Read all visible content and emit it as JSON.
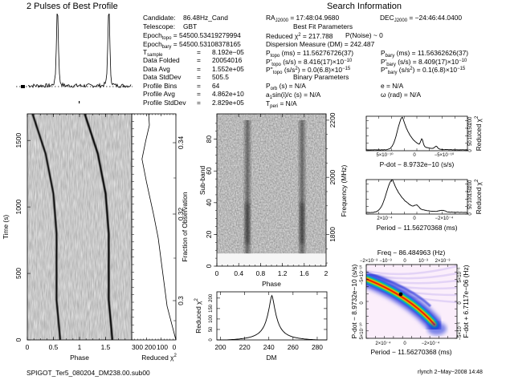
{
  "profile_title": "2 Pulses of Best Profile",
  "info_left": {
    "candidate": {
      "label": "Candidate:",
      "value": "86.48Hz_Cand"
    },
    "telescope": {
      "label": "Telescope:",
      "value": "GBT"
    },
    "epoch_topo": {
      "label": "Epoch",
      "sub": "topo",
      "value": "= 54500.53419279994"
    },
    "epoch_bary": {
      "label": "Epoch",
      "sub": "bary",
      "value": "= 54500.53108378165"
    },
    "t_sample": {
      "label": "T",
      "sub": "sample",
      "value": "8.192e−05"
    },
    "rows": [
      {
        "label": "Data Folded",
        "value": "20054016"
      },
      {
        "label": "Data Avg",
        "value": "1.552e+05"
      },
      {
        "label": "Data StdDev",
        "value": "505.5"
      },
      {
        "label": "Profile Bins",
        "value": "64"
      },
      {
        "label": "Profile Avg",
        "value": "4.862e+10"
      },
      {
        "label": "Profile StdDev",
        "value": "2.829e+05"
      }
    ],
    "eq": "="
  },
  "info_right": {
    "title": "Search Information",
    "ra": {
      "label": "RA",
      "sub": "J2000",
      "value": "= 17:48:04.9680"
    },
    "dec": {
      "label": "DEC",
      "sub": "J2000",
      "value": "= −24:46:44.0400"
    },
    "best_fit_title": "Best Fit Parameters",
    "chi2": "Reduced χ",
    "chi2_sup": "2",
    "chi2_value": "= 217.788",
    "pnoise": "P(Noise) ~ 0",
    "dm": "Dispersion Measure (DM) = 242.487",
    "p_topo": {
      "label": "P",
      "sub": "topo",
      "unit": "(ms) =",
      "value": "11.56276726(37)"
    },
    "pd_topo": {
      "label": "P'",
      "sub": "topo",
      "unit": "(s/s) =",
      "value": "8.416(17)×10",
      "exp": "−10"
    },
    "pdd_topo": {
      "label": "P''",
      "sub": "topo",
      "unit": "(s/s",
      "unit_sup": "2",
      "unit_end": ") =",
      "value": "0.0(6.8)×10",
      "exp": "−15"
    },
    "p_bary": {
      "label": "P",
      "sub": "bary",
      "unit": "(ms) =",
      "value": "11.56362626(37)"
    },
    "pd_bary": {
      "label": "P'",
      "sub": "bary",
      "unit": "(s/s) =",
      "value": "8.409(17)×10",
      "exp": "−10"
    },
    "pdd_bary": {
      "label": "P''",
      "sub": "bary",
      "unit": "(s/s",
      "unit_sup": "2",
      "unit_end": ") =",
      "value": "0.1(6.8)×10",
      "exp": "−15"
    },
    "binary_title": "Binary Parameters",
    "p_orb": {
      "label": "P",
      "sub": "orb",
      "value": "(s) = N/A"
    },
    "a1": {
      "label": "a",
      "sub": "1",
      "value": "sin(i)/c (s) = N/A"
    },
    "t_peri": {
      "label": "T",
      "sub": "peri",
      "value": "= N/A"
    },
    "e": "e = N/A",
    "omega": "ω (rad) = N/A"
  },
  "footer": {
    "filename": "SPIGOT_Ter5_080204_DM238.00.sub00",
    "user_date": "rlynch   2−May−2008 14:48"
  },
  "colors": {
    "ink": "#000000",
    "greyscale_bg": "#f2f2f2",
    "cmap": [
      "#fbeefb",
      "#d8c8f4",
      "#6f6fe8",
      "#1a2fd8",
      "#00a0e0",
      "#26c060",
      "#e8e800",
      "#ff8a00",
      "#e60000"
    ]
  },
  "chart_data": [
    {
      "type": "line",
      "title": "2 Pulses of Best Profile",
      "xlabel": "",
      "ylabel": "",
      "x_range": [
        0,
        2
      ],
      "peaks_phase": [
        0.57,
        1.57
      ],
      "description_values": {
        "baseline": 0.1,
        "peak": 1.0
      }
    },
    {
      "type": "heatmap",
      "name": "time-phase",
      "xlabel": "Phase",
      "ylabel": "Time (s)",
      "x_ticks": [
        "0",
        "0.5",
        "1",
        "1.5"
      ],
      "y_ticks": [
        "0",
        "500",
        "1000",
        "1500"
      ],
      "xlim": [
        0,
        2
      ],
      "ylim": [
        0,
        1700
      ],
      "tracks": [
        {
          "phase_at": [
            [
              0,
              0.63
            ],
            [
              300,
              0.56
            ],
            [
              800,
              0.56
            ],
            [
              1100,
              0.5
            ],
            [
              1400,
              0.35
            ],
            [
              1700,
              0.1
            ]
          ]
        },
        {
          "phase_at": [
            [
              0,
              1.63
            ],
            [
              300,
              1.56
            ],
            [
              800,
              1.56
            ],
            [
              1100,
              1.5
            ],
            [
              1400,
              1.35
            ],
            [
              1700,
              1.1
            ]
          ]
        }
      ]
    },
    {
      "type": "line",
      "name": "time-chi2",
      "xlabel": "Reduced χ",
      "xlabel_sup": "2",
      "ylabel": "Fraction of Observation",
      "x_ticks": [
        "300",
        "200",
        "100",
        "0"
      ],
      "y_ticks": [
        "0.3",
        "0.32",
        "0.34"
      ],
      "xlim": [
        300,
        0
      ],
      "points": [
        [
          0,
          0.0
        ],
        [
          20,
          0.05
        ],
        [
          60,
          0.15
        ],
        [
          90,
          0.3
        ],
        [
          120,
          0.45
        ],
        [
          150,
          0.55
        ],
        [
          200,
          0.7
        ],
        [
          230,
          0.8
        ],
        [
          205,
          0.88
        ],
        [
          180,
          0.95
        ],
        [
          185,
          1.0
        ]
      ]
    },
    {
      "type": "heatmap",
      "name": "subband-phase",
      "xlabel": "Phase",
      "ylabel": "Sub-band",
      "ylabel2": "Frequency (MHz)",
      "x_ticks": [
        "0",
        "0.4",
        "0.8",
        "1.2",
        "1.6",
        "2"
      ],
      "y_ticks": [
        "0",
        "20",
        "40",
        "60",
        "80"
      ],
      "y2_ticks": [
        "1800",
        "2000",
        "2200"
      ],
      "xlim": [
        0,
        2
      ],
      "ylim": [
        0,
        96
      ],
      "pulse_phases": [
        0.56,
        1.56
      ]
    },
    {
      "type": "line",
      "name": "dm-chi2",
      "xlabel": "DM",
      "ylabel": "Reduced χ",
      "ylabel_sup": "2",
      "x_ticks": [
        "200",
        "220",
        "240",
        "260",
        "280"
      ],
      "y_ticks": [
        "0",
        "50",
        "100",
        "150",
        "200"
      ],
      "xlim": [
        197,
        288
      ],
      "ylim": [
        0,
        230
      ],
      "peak": {
        "x": 242.5,
        "y": 218
      }
    },
    {
      "type": "line",
      "name": "pdot-chi2",
      "xlabel": "P-dot − 8.9732e−10 (s/s)",
      "ylabel": "Reduced χ",
      "ylabel_sup": "2",
      "x_ticks": [
        "5×10⁻¹⁰",
        "0",
        "−5×10⁻¹⁰"
      ],
      "y_ticks": [
        "0",
        "50",
        "100",
        "150",
        "200"
      ],
      "ylim": [
        0,
        230
      ]
    },
    {
      "type": "line",
      "name": "period-chi2",
      "xlabel": "Period − 11.56270368 (ms)",
      "ylabel": "Reduced χ",
      "ylabel_sup": "2",
      "x_ticks": [
        "2×10⁻⁴",
        "0",
        "−2×10⁻⁴"
      ],
      "y_ticks": [
        "0",
        "50",
        "100",
        "150",
        "200"
      ],
      "ylim": [
        0,
        230
      ]
    },
    {
      "type": "heatmap",
      "name": "p-pdot",
      "title": "Freq − 86.484963 (Hz)",
      "xlabel": "Period − 11.56270368 (ms)",
      "ylabel": "P-dot − 8.9732e−10 (s/s)",
      "ylabel2": "F-dot + 6.7117e−06 (Hz)",
      "x_ticks": [
        "2×10⁻⁴",
        "0",
        "−2×10⁻⁴"
      ],
      "x2_ticks": [
        "−2×10⁻³",
        "−10⁻³",
        "0",
        "10⁻³",
        "2×10⁻³"
      ],
      "y_ticks": [
        "−5×10⁻¹⁰",
        "0",
        "5×10⁻¹⁰"
      ],
      "y2_ticks": [
        "5×10⁻⁶",
        "0",
        "−5×10⁻⁶"
      ],
      "best_point": {
        "x": 0,
        "y": 0
      }
    }
  ]
}
